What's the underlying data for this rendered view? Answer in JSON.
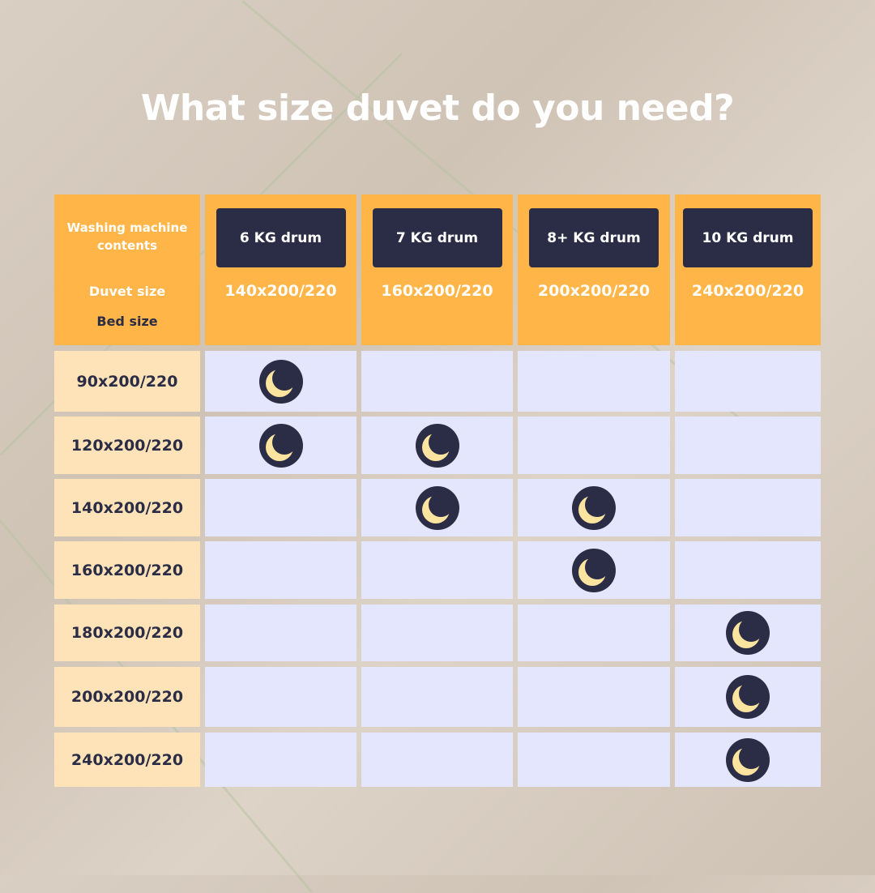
{
  "title": "What size duvet do you need?",
  "corner": {
    "line1": "Washing machine contents",
    "line2": "Duvet size",
    "line3": "Bed size"
  },
  "columns": [
    {
      "drum": "6 KG drum",
      "duvet_size": "140x200/220"
    },
    {
      "drum": "7 KG drum",
      "duvet_size": "160x200/220"
    },
    {
      "drum": "8+ KG drum",
      "duvet_size": "200x200/220"
    },
    {
      "drum": "10 KG drum",
      "duvet_size": "240x200/220"
    }
  ],
  "rows": [
    {
      "bed_size": "90x200/220",
      "marks": [
        1,
        0,
        0,
        0
      ]
    },
    {
      "bed_size": "120x200/220",
      "marks": [
        1,
        1,
        0,
        0
      ]
    },
    {
      "bed_size": "140x200/220",
      "marks": [
        0,
        1,
        1,
        0
      ]
    },
    {
      "bed_size": "160x200/220",
      "marks": [
        0,
        0,
        1,
        0
      ]
    },
    {
      "bed_size": "180x200/220",
      "marks": [
        0,
        0,
        0,
        1
      ]
    },
    {
      "bed_size": "200x200/220",
      "marks": [
        0,
        0,
        0,
        1
      ]
    },
    {
      "bed_size": "240x200/220",
      "marks": [
        0,
        0,
        0,
        1
      ]
    }
  ],
  "mark_icon": "moon-icon",
  "colors": {
    "header": "#ffb548",
    "row_header": "#ffe3b8",
    "cell": "#e3e6fc",
    "dark": "#2a2d45",
    "moon": "#fbe3a0"
  }
}
